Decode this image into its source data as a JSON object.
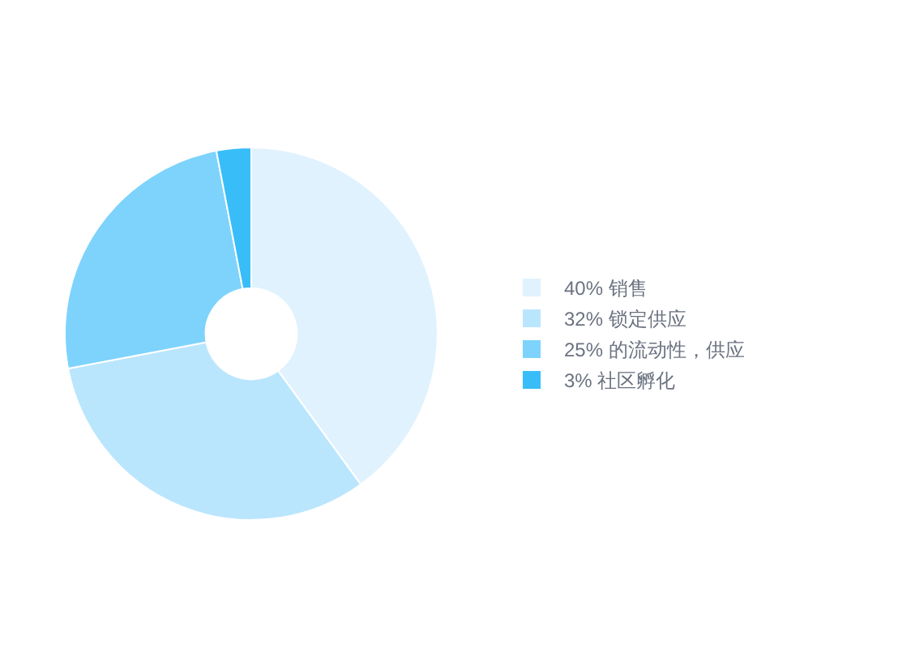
{
  "chart_data": {
    "type": "donut",
    "categories": [
      "销售",
      "锁定供应",
      "的流动性，供应",
      "社区孵化"
    ],
    "values": [
      40,
      32,
      25,
      3
    ],
    "value_labels": [
      "40%",
      "32%",
      "25%",
      "3%"
    ],
    "colors": [
      "#e0f2fe",
      "#bae6fd",
      "#7dd3fc",
      "#38bdf8"
    ],
    "legend": "right"
  }
}
